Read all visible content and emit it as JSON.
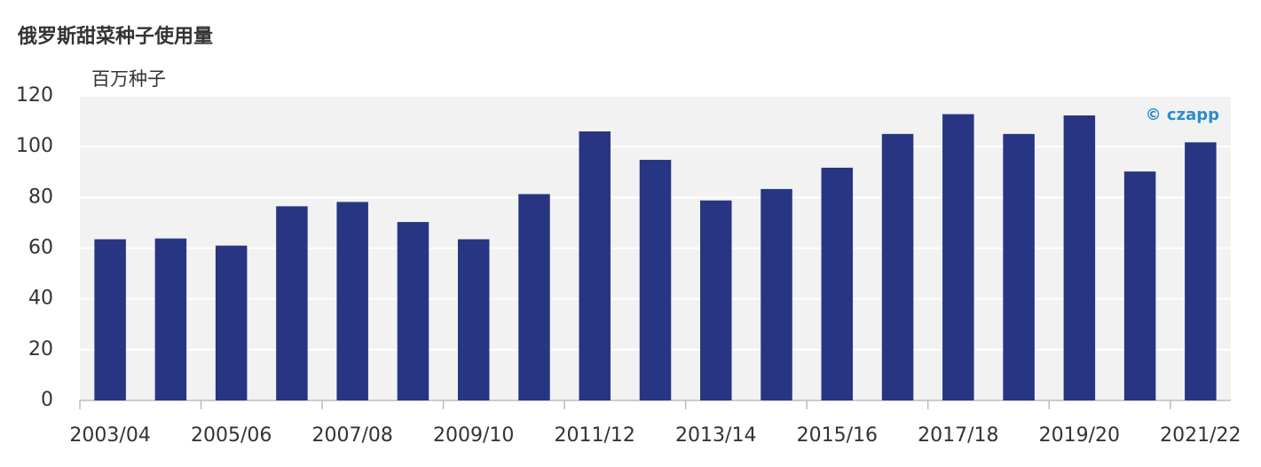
{
  "chart_data": {
    "type": "bar",
    "title": "俄罗斯甜菜种子使用量",
    "y_label": "百万种子",
    "watermark": "© czapp",
    "categories": [
      "2003/04",
      null,
      "2005/06",
      null,
      "2007/08",
      null,
      "2009/10",
      null,
      "2011/12",
      null,
      "2013/14",
      null,
      "2015/16",
      null,
      "2017/18",
      null,
      "2019/20",
      null,
      "2021/22"
    ],
    "values": [
      63.5,
      63.8,
      61,
      76.5,
      78.2,
      70.3,
      63.5,
      81.3,
      106,
      94.8,
      78.8,
      83.3,
      91.7,
      105,
      112.8,
      105,
      112.3,
      90.2,
      101.7
    ],
    "color": "#283583",
    "ylim": [
      0,
      120
    ],
    "yticks": [
      0,
      20,
      40,
      60,
      80,
      100,
      120
    ],
    "grid": true
  }
}
